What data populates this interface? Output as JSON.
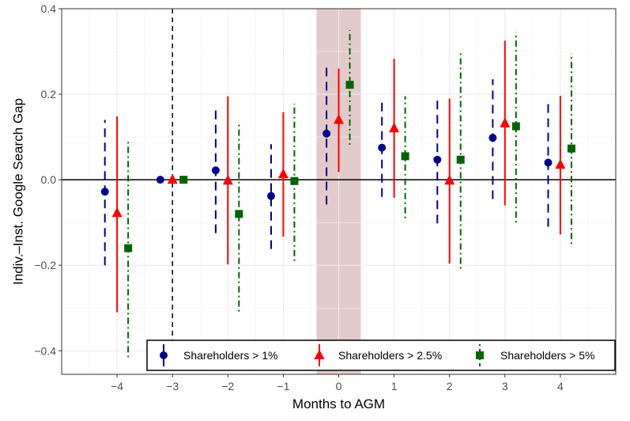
{
  "chart_data": {
    "type": "scatter",
    "xlabel": "Months to AGM",
    "ylabel": "Indiv.–Inst. Google Search Gap",
    "xlim": [
      -5,
      5
    ],
    "ylim": [
      -0.455,
      0.4
    ],
    "x_ticks": [
      -4,
      -3,
      -2,
      -1,
      0,
      1,
      2,
      3,
      4
    ],
    "x_tick_labels": [
      "−4",
      "−3",
      "−2",
      "−1",
      "0",
      "1",
      "2",
      "3",
      "4"
    ],
    "y_ticks": [
      -0.4,
      -0.2,
      0.0,
      0.2,
      0.4
    ],
    "y_tick_labels": [
      "−0.4",
      "−0.2",
      "0.0",
      "0.2",
      "0.4"
    ],
    "grid": true,
    "reference_lines": {
      "horizontal_y": 0,
      "vertical_dashed_x": -3
    },
    "shaded_band": {
      "x_from": -0.4,
      "x_to": 0.4,
      "color": "#d8b8b8"
    },
    "legend_position": "bottom-right",
    "series": [
      {
        "name": "Shareholders > 1%",
        "marker": "circle",
        "color": "#00008b",
        "line_style": "longdash",
        "x_offset": -0.22,
        "x": [
          -4,
          -3,
          -2,
          -1,
          0,
          1,
          2,
          3,
          4
        ],
        "y": [
          -0.028,
          0.0,
          0.022,
          -0.038,
          0.108,
          0.075,
          0.047,
          0.098,
          0.04
        ],
        "lower": [
          -0.2,
          0.0,
          -0.125,
          -0.162,
          -0.058,
          -0.04,
          -0.102,
          -0.045,
          -0.11
        ],
        "upper": [
          0.14,
          0.0,
          0.168,
          0.083,
          0.272,
          0.188,
          0.195,
          0.235,
          0.188
        ]
      },
      {
        "name": "Shareholders > 2.5%",
        "marker": "triangle",
        "color": "#ff0000",
        "line_style": "solid",
        "x_offset": 0.0,
        "x": [
          -4,
          -3,
          -2,
          -1,
          0,
          1,
          2,
          3,
          4
        ],
        "y": [
          -0.078,
          0.0,
          -0.002,
          0.013,
          0.14,
          0.12,
          -0.002,
          0.132,
          0.035
        ],
        "lower": [
          -0.31,
          0.0,
          -0.198,
          -0.133,
          0.018,
          -0.042,
          -0.196,
          -0.06,
          -0.128
        ],
        "upper": [
          0.148,
          0.0,
          0.195,
          0.158,
          0.26,
          0.283,
          0.19,
          0.325,
          0.196
        ]
      },
      {
        "name": "Shareholders > 5%",
        "marker": "square",
        "color": "#006400",
        "line_style": "dotdash",
        "x_offset": 0.2,
        "x": [
          -4,
          -3,
          -2,
          -1,
          0,
          1,
          2,
          3,
          4
        ],
        "y": [
          -0.16,
          0.0,
          -0.08,
          -0.003,
          0.222,
          0.055,
          0.047,
          0.125,
          0.073
        ],
        "lower": [
          -0.415,
          0.0,
          -0.308,
          -0.19,
          0.082,
          -0.09,
          -0.208,
          -0.1,
          -0.15
        ],
        "upper": [
          0.093,
          0.0,
          0.135,
          0.178,
          0.35,
          0.195,
          0.3,
          0.345,
          0.295
        ]
      }
    ]
  }
}
